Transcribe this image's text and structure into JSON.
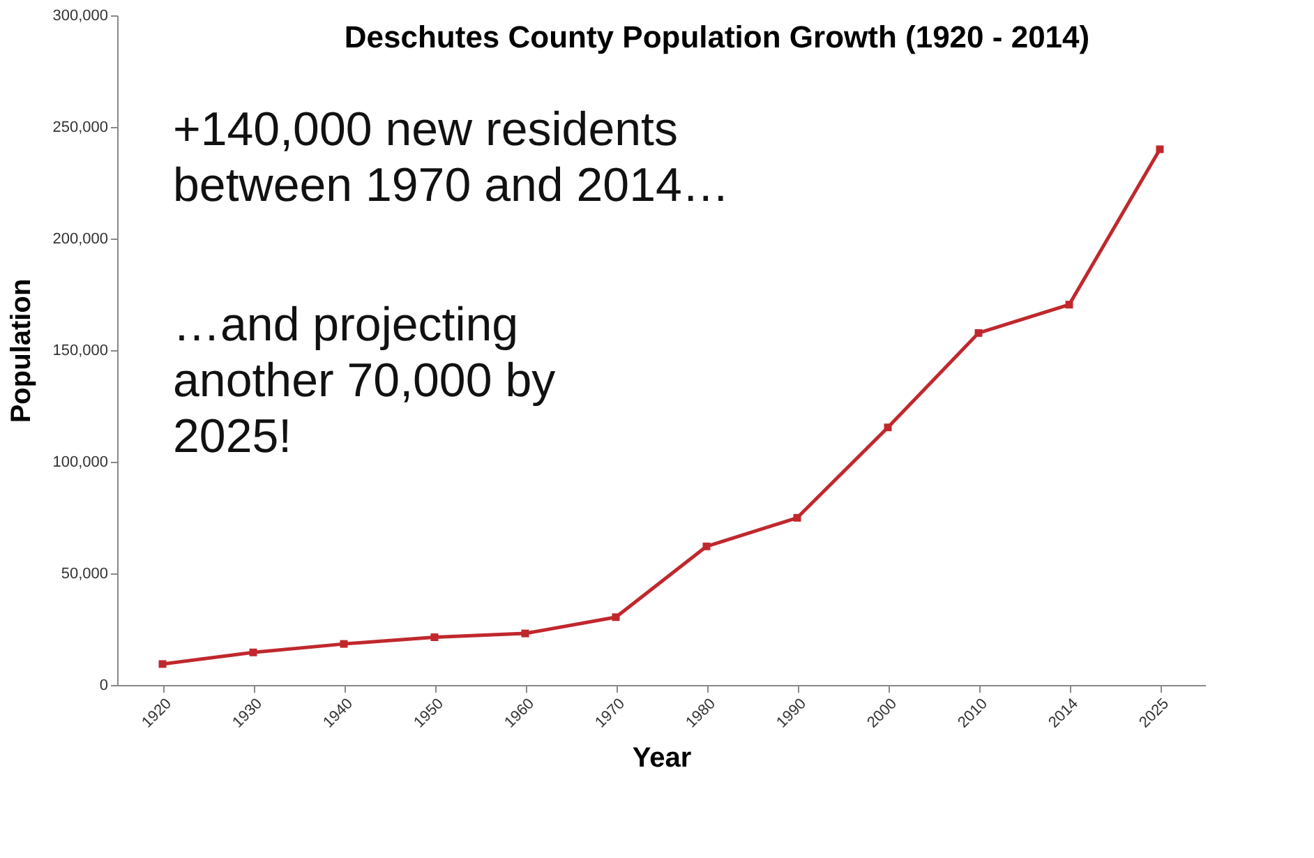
{
  "chart_data": {
    "type": "line",
    "title": "Deschutes County Population Growth (1920 - 2014)",
    "xlabel": "Year",
    "ylabel": "Population",
    "categories": [
      "1920",
      "1930",
      "1940",
      "1950",
      "1960",
      "1970",
      "1980",
      "1990",
      "2000",
      "2010",
      "2014",
      "2025"
    ],
    "series": [
      {
        "color": "#c0282d",
        "values": [
          9400,
          14600,
          18400,
          21400,
          23100,
          30400,
          62100,
          74900,
          115400,
          157700,
          170400,
          240000
        ]
      }
    ],
    "ylim": [
      0,
      300000
    ],
    "yticks": [
      0,
      {
        "value": 50000,
        "label": "50,000"
      },
      {
        "value": 100000,
        "label": "100,000"
      },
      {
        "value": 150000,
        "label": "150,000"
      },
      {
        "value": 200000,
        "label": "200,000"
      },
      {
        "value": 250000,
        "label": "250,000"
      },
      {
        "value": 300000,
        "label": "300,000"
      }
    ],
    "grid": false,
    "marker": "square",
    "line_style": "solid",
    "annotations": [
      "+140,000 new residents\nbetween 1970 and 2014…",
      "…and projecting\nanother 70,000 by\n2025!"
    ]
  }
}
